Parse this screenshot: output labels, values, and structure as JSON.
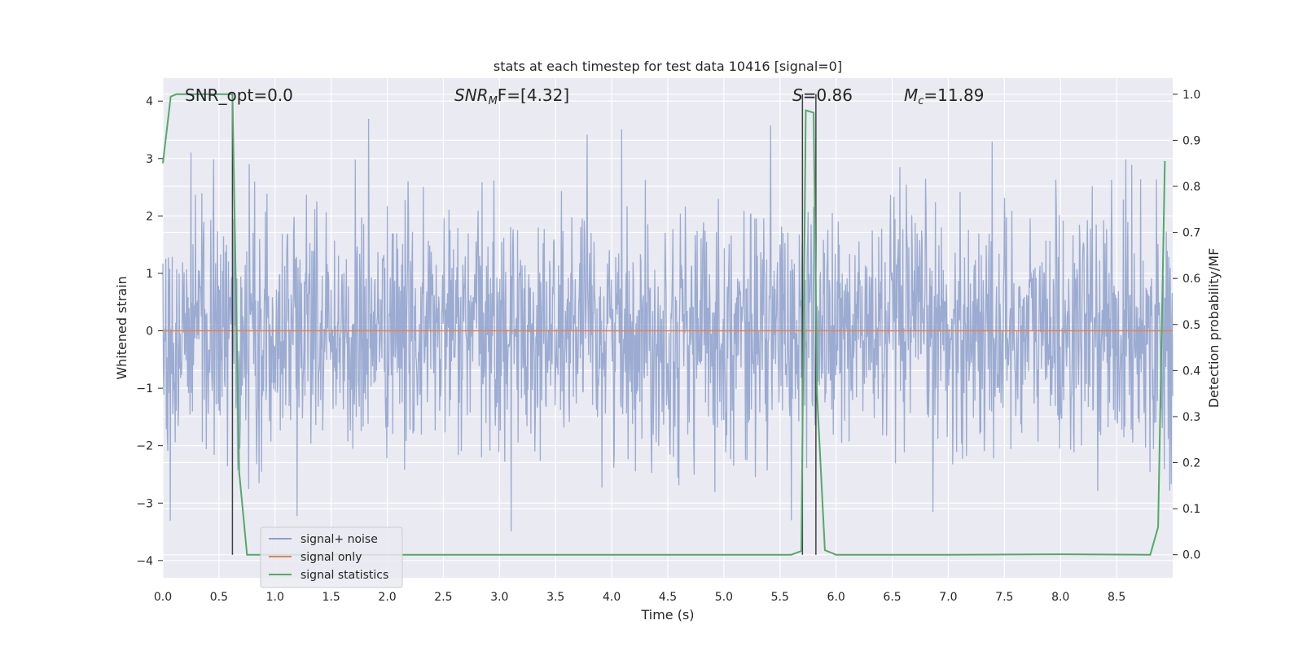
{
  "chart_data": {
    "type": "line",
    "title": "stats at each timestep for test data 10416 [signal=0]",
    "xlabel": "Time (s)",
    "ylabel_left": "Whitened strain",
    "ylabel_right": "Detection probability/MF",
    "xlim": [
      0.0,
      9.0
    ],
    "ylim_left": [
      -4.3,
      4.4
    ],
    "ylim_right": [
      -0.05,
      1.035
    ],
    "x_ticks": [
      "0.0",
      "0.5",
      "1.0",
      "1.5",
      "2.0",
      "2.5",
      "3.0",
      "3.5",
      "4.0",
      "4.5",
      "5.0",
      "5.5",
      "6.0",
      "6.5",
      "7.0",
      "7.5",
      "8.0",
      "8.5"
    ],
    "y_ticks_left": [
      "4",
      "3",
      "2",
      "1",
      "0",
      "−1",
      "−2",
      "−3",
      "−4"
    ],
    "y_ticks_right": [
      "1.0",
      "0.9",
      "0.8",
      "0.7",
      "0.6",
      "0.5",
      "0.4",
      "0.3",
      "0.2",
      "0.1",
      "0.0"
    ],
    "grid": true,
    "legend_position": "lower-left",
    "annotations": {
      "snr_opt": "SNR_opt=0.0",
      "snr_mf_base": "SNR",
      "snr_mf_sub": "M",
      "snr_mf_rest": "F=[4.32]",
      "s_label": "S",
      "s_value": "=0.86",
      "mc_label": "M",
      "mc_sub": "c",
      "mc_value": "=11.89"
    },
    "vertical_markers": [
      0.62,
      5.7,
      5.82
    ],
    "series": [
      {
        "name": "signal+ noise",
        "color": "#8da0cb",
        "axis": "left",
        "description_values": {
          "typical_amplitude": 1.6,
          "max_positive": 4.0,
          "max_negative": -3.95,
          "samples": 2048
        }
      },
      {
        "name": "signal only",
        "color": "#dd8452",
        "axis": "left",
        "x": [
          0.0,
          9.0
        ],
        "y": [
          0.0,
          0.0
        ]
      },
      {
        "name": "signal statistics",
        "color": "#55a868",
        "axis": "right",
        "x": [
          0.0,
          0.07,
          0.12,
          0.2,
          0.3,
          0.4,
          0.5,
          0.55,
          0.62,
          0.68,
          0.75,
          0.8,
          1.0,
          2.0,
          3.0,
          4.0,
          5.0,
          5.6,
          5.69,
          5.73,
          5.8,
          5.83,
          5.9,
          6.0,
          7.0,
          8.0,
          8.8,
          8.87,
          8.93
        ],
        "y": [
          0.85,
          0.995,
          1.0,
          1.0,
          1.0,
          1.0,
          1.0,
          1.0,
          1.0,
          0.18,
          0.0,
          0.0,
          0.0,
          0.0,
          0.0,
          0.0,
          0.0,
          0.0,
          0.008,
          0.965,
          0.96,
          0.35,
          0.01,
          0.0,
          0.0,
          0.001,
          0.0,
          0.06,
          0.855
        ]
      }
    ]
  }
}
